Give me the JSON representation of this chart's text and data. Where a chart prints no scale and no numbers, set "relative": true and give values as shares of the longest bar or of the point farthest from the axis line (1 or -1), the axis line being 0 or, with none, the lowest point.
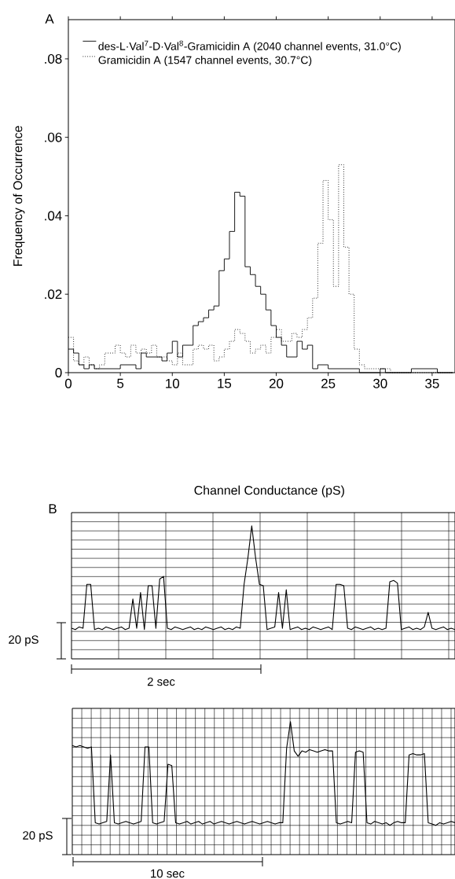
{
  "chart_data": [
    {
      "type": "histogram",
      "xlabel": "Channel Conductance (pS)",
      "ylabel": "Frequency of Occurrence",
      "annotations": [
        "A"
      ],
      "legend": "top left",
      "bins": [
        0,
        0.5,
        1,
        1.5,
        2,
        2.5,
        3,
        3.5,
        4,
        4.5,
        5,
        5.5,
        6,
        6.5,
        7,
        7.5,
        8,
        8.5,
        9,
        9.5,
        10,
        10.5,
        11,
        11.5,
        12,
        12.5,
        13,
        13.5,
        14,
        14.5,
        15,
        15.5,
        16,
        16.5,
        17,
        17.5,
        18,
        18.5,
        19,
        19.5,
        20,
        20.5,
        21,
        21.5,
        22,
        22.5,
        23,
        23.5,
        24,
        24.5,
        25,
        25.5,
        26,
        26.5,
        27,
        27.5,
        28,
        28.5,
        29,
        29.5,
        30,
        30.5,
        31,
        31.5,
        32,
        32.5,
        33,
        33.5,
        34,
        34.5,
        35,
        35.5,
        36,
        36.5,
        37
      ],
      "series": [
        {
          "name": "des-L·Val$^{7}$-D·Val$^{8}$-Gramicidin A  (2040 channel events, 31.0°C)",
          "color": "#000000",
          "line_style": "solid",
          "values": [
            0.006,
            0.005,
            0.002,
            0.001,
            0.002,
            0.001,
            0.001,
            0.001,
            0.001,
            0.001,
            0.002,
            0.002,
            0.002,
            0.001,
            0.005,
            0.004,
            0.004,
            0.004,
            0.003,
            0.005,
            0.008,
            0.004,
            0.007,
            0.007,
            0.012,
            0.013,
            0.014,
            0.016,
            0.017,
            0.026,
            0.029,
            0.036,
            0.046,
            0.045,
            0.027,
            0.025,
            0.022,
            0.02,
            0.016,
            0.012,
            0.009,
            0.007,
            0.004,
            0.004,
            0.008,
            0.006,
            0.007,
            0.001,
            0.002,
            0.002,
            0.001,
            0.001,
            0.001,
            0.001,
            0.001,
            0.001,
            0,
            0,
            0,
            0,
            0.001,
            0,
            0,
            0,
            0,
            0,
            0.001,
            0.001,
            0.001,
            0.001,
            0.001,
            0,
            0,
            0
          ]
        },
        {
          "name": "Gramicidin A  (1547 channel  events, 30.7°C)",
          "color": "#000000",
          "line_style": "dotted",
          "values": [
            0.009,
            0.003,
            0.002,
            0.004,
            0.002,
            0.001,
            0.002,
            0.005,
            0.005,
            0.007,
            0.005,
            0.004,
            0.007,
            0.005,
            0.006,
            0.005,
            0.007,
            0.004,
            0.004,
            0.003,
            0.002,
            0.005,
            0.002,
            0.002,
            0.006,
            0.007,
            0.006,
            0.007,
            0.003,
            0.004,
            0.006,
            0.008,
            0.011,
            0.01,
            0.008,
            0.005,
            0.006,
            0.007,
            0.005,
            0.009,
            0.011,
            0.008,
            0.008,
            0.01,
            0.009,
            0.011,
            0.014,
            0.019,
            0.033,
            0.049,
            0.039,
            0.022,
            0.053,
            0.032,
            0.02,
            0.006,
            0.002,
            0.001,
            0.001,
            0.001,
            0.001,
            0.001,
            0,
            0,
            0,
            0,
            0,
            0,
            0,
            0,
            0,
            0,
            0,
            0
          ]
        }
      ],
      "xlim": [
        0,
        37.2
      ],
      "ylim": [
        0,
        0.09
      ],
      "xticks": [
        0,
        5,
        10,
        15,
        20,
        25,
        30,
        35
      ],
      "yticks": [
        0,
        {
          "value": 0.02,
          "label": ".02"
        },
        {
          "value": 0.04,
          "label": ".04"
        },
        {
          "value": 0.06,
          "label": ".06"
        },
        {
          "value": 0.08,
          "label": ".08"
        }
      ]
    },
    {
      "type": "line",
      "relative": true,
      "grid": true,
      "annotations": [
        "B",
        "20 pS",
        "2 sec"
      ],
      "color": "#000000",
      "categories": [
        null,
        null,
        null,
        null,
        null,
        null,
        null,
        null,
        null,
        null,
        null,
        null,
        null,
        null,
        null,
        null,
        null,
        null,
        null,
        null,
        null,
        null,
        null,
        null,
        null,
        null,
        null,
        null,
        null,
        null,
        null,
        null,
        null,
        null,
        null,
        null,
        null,
        null,
        null,
        null,
        null,
        null,
        null,
        null,
        null,
        null,
        null,
        null,
        null,
        null,
        null,
        null,
        null,
        null,
        null,
        null,
        null,
        null,
        null,
        null,
        null,
        null,
        null,
        null,
        null,
        null,
        null,
        null,
        null,
        null,
        null,
        null,
        null,
        null,
        null,
        null,
        null,
        null,
        null,
        null,
        null,
        null,
        null,
        null,
        null,
        null,
        null,
        null,
        null,
        null,
        null,
        null,
        null,
        null,
        null,
        null,
        null,
        null,
        null,
        null,
        null
      ],
      "values": [
        0.23,
        0.22,
        0.24,
        0.23,
        0.56,
        0.56,
        0.22,
        0.23,
        0.22,
        0.24,
        0.23,
        0.22,
        0.23,
        0.24,
        0.22,
        0.23,
        0.45,
        0.23,
        0.5,
        0.22,
        0.55,
        0.55,
        0.23,
        0.6,
        0.62,
        0.23,
        0.22,
        0.24,
        0.23,
        0.22,
        0.23,
        0.24,
        0.22,
        0.23,
        0.22,
        0.24,
        0.23,
        0.22,
        0.23,
        0.24,
        0.22,
        0.23,
        0.22,
        0.24,
        0.23,
        0.56,
        0.76,
        1,
        0.76,
        0.56,
        0.55,
        0.22,
        0.23,
        0.24,
        0.5,
        0.23,
        0.52,
        0.22,
        0.23,
        0.24,
        0.22,
        0.23,
        0.22,
        0.24,
        0.23,
        0.22,
        0.23,
        0.24,
        0.22,
        0.56,
        0.56,
        0.55,
        0.23,
        0.22,
        0.24,
        0.23,
        0.22,
        0.23,
        0.24,
        0.22,
        0.23,
        0.22,
        0.23,
        0.58,
        0.59,
        0.57,
        0.22,
        0.23,
        0.24,
        0.22,
        0.23,
        0.22,
        0.24,
        0.35,
        0.23,
        0.22,
        0.23,
        0.24,
        0.22,
        0.23,
        0.22
      ]
    },
    {
      "type": "line",
      "relative": true,
      "grid": true,
      "annotations": [
        "20 pS",
        "10 sec"
      ],
      "color": "#000000",
      "categories": [
        null,
        null,
        null,
        null,
        null,
        null,
        null,
        null,
        null,
        null,
        null,
        null,
        null,
        null,
        null,
        null,
        null,
        null,
        null,
        null,
        null,
        null,
        null,
        null,
        null,
        null,
        null,
        null,
        null,
        null,
        null,
        null,
        null,
        null,
        null,
        null,
        null,
        null,
        null,
        null,
        null,
        null,
        null,
        null,
        null,
        null,
        null,
        null,
        null,
        null,
        null,
        null,
        null,
        null,
        null,
        null,
        null,
        null,
        null,
        null,
        null,
        null,
        null,
        null,
        null,
        null,
        null,
        null,
        null,
        null,
        null,
        null,
        null,
        null,
        null,
        null,
        null,
        null,
        null,
        null,
        null,
        null,
        null,
        null,
        null,
        null,
        null,
        null,
        null,
        null,
        null,
        null,
        null,
        null,
        null,
        null,
        null,
        null,
        null,
        null,
        null
      ],
      "values": [
        0.82,
        0.81,
        0.82,
        0.81,
        0.8,
        0.81,
        0.24,
        0.23,
        0.24,
        0.25,
        0.75,
        0.24,
        0.23,
        0.24,
        0.25,
        0.24,
        0.23,
        0.24,
        0.25,
        0.81,
        0.81,
        0.24,
        0.23,
        0.24,
        0.25,
        0.68,
        0.67,
        0.24,
        0.23,
        0.24,
        0.25,
        0.23,
        0.24,
        0.25,
        0.23,
        0.24,
        0.25,
        0.23,
        0.24,
        0.25,
        0.24,
        0.23,
        0.24,
        0.25,
        0.24,
        0.23,
        0.24,
        0.25,
        0.24,
        0.23,
        0.24,
        0.25,
        0.24,
        0.23,
        0.24,
        0.24,
        0.8,
        1,
        0.78,
        0.74,
        0.78,
        0.77,
        0.79,
        0.78,
        0.77,
        0.78,
        0.79,
        0.78,
        0.78,
        0.24,
        0.23,
        0.24,
        0.25,
        0.24,
        0.77,
        0.78,
        0.77,
        0.24,
        0.23,
        0.25,
        0.24,
        0.23,
        0.24,
        0.22,
        0.24,
        0.25,
        0.24,
        0.24,
        0.75,
        0.76,
        0.75,
        0.75,
        0.76,
        0.24,
        0.23,
        0.22,
        0.24,
        0.23,
        0.24,
        0.25,
        0.24
      ]
    }
  ]
}
